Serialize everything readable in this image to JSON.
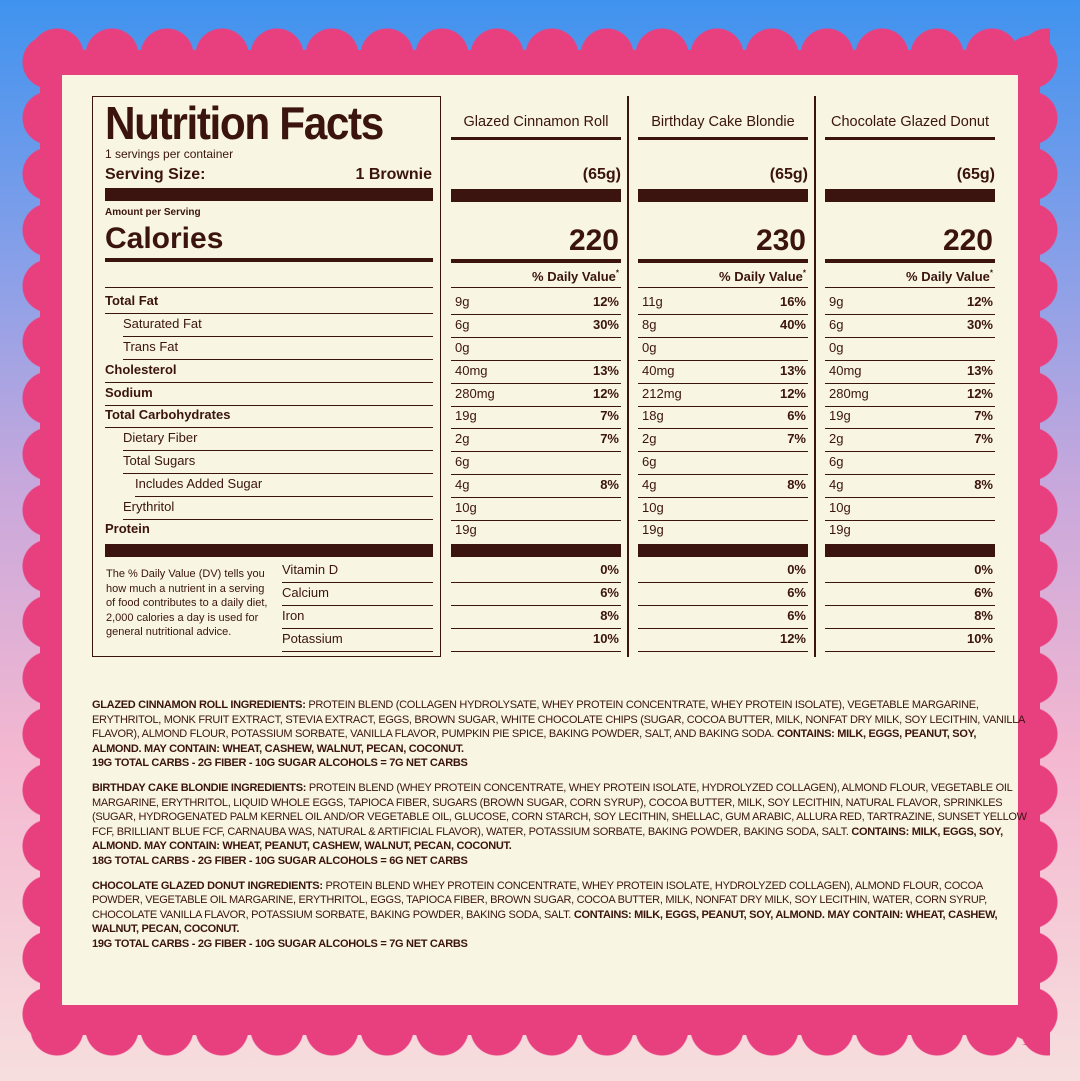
{
  "label": {
    "title": "Nutrition Facts",
    "servings": "1 servings per container",
    "serving_size_label": "Serving Size:",
    "serving_size_value": "1 Brownie",
    "amount_per_serving": "Amount per Serving",
    "calories_label": "Calories",
    "daily_value_header": "% Daily Value",
    "footnote_mark": "*",
    "nutrients": [
      "Total Fat",
      "Saturated Fat",
      "Trans Fat",
      "Cholesterol",
      "Sodium",
      "Total Carbohydrates",
      "Dietary Fiber",
      "Total Sugars",
      "Includes Added Sugar",
      "Erythritol",
      "Protein"
    ],
    "vitamins": [
      "Vitamin D",
      "Calcium",
      "Iron",
      "Potassium"
    ],
    "dv_note": "The % Daily Value (DV) tells you how much a nutrient in a serving of food contributes to a daily diet, 2,000 calories a day is used for general nutritional advice."
  },
  "products": [
    {
      "name": "Glazed Cinnamon Roll",
      "weight": "(65g)",
      "calories": "220",
      "amounts": [
        "9g",
        "6g",
        "0g",
        "40mg",
        "280mg",
        "19g",
        "2g",
        "6g",
        "4g",
        "10g",
        "19g"
      ],
      "dv": [
        "12%",
        "30%",
        "",
        "13%",
        "12%",
        "7%",
        "7%",
        "",
        "8%",
        "",
        ""
      ],
      "vitamins": [
        "0%",
        "6%",
        "8%",
        "10%"
      ]
    },
    {
      "name": "Birthday Cake Blondie",
      "weight": "(65g)",
      "calories": "230",
      "amounts": [
        "11g",
        "8g",
        "0g",
        "40mg",
        "212mg",
        "18g",
        "2g",
        "6g",
        "4g",
        "10g",
        "19g"
      ],
      "dv": [
        "16%",
        "40%",
        "",
        "13%",
        "12%",
        "6%",
        "7%",
        "",
        "8%",
        "",
        ""
      ],
      "vitamins": [
        "0%",
        "6%",
        "6%",
        "12%"
      ]
    },
    {
      "name": "Chocolate Glazed Donut",
      "weight": "(65g)",
      "calories": "220",
      "amounts": [
        "9g",
        "6g",
        "0g",
        "40mg",
        "280mg",
        "19g",
        "2g",
        "6g",
        "4g",
        "10g",
        "19g"
      ],
      "dv": [
        "12%",
        "30%",
        "",
        "13%",
        "12%",
        "7%",
        "7%",
        "",
        "8%",
        "",
        ""
      ],
      "vitamins": [
        "0%",
        "6%",
        "8%",
        "10%"
      ]
    }
  ],
  "ingredients": [
    {
      "heading": "Glazed Cinnamon Roll Ingredients:",
      "text": " Protein Blend (Collagen Hydrolysate, Whey Protein Concentrate, Whey Protein Isolate), Vegetable Margarine, Erythritol, Monk Fruit Extract, Stevia Extract, Eggs, Brown Sugar, White Chocolate Chips (Sugar, Cocoa Butter, Milk, Nonfat Dry Milk, Soy Lecithin, Vanilla Flavor), Almond Flour, Potassium Sorbate, Vanilla Flavor, Pumpkin Pie Spice, Baking Powder, Salt, and Baking Soda. ",
      "allergens": "Contains: Milk, Eggs, Peanut, Soy, Almond. May Contain: Wheat, Cashew, Walnut, Pecan, Coconut.",
      "carbs": "19G Total Carbs - 2G Fiber - 10G Sugar Alcohols = 7G Net Carbs"
    },
    {
      "heading": "Birthday Cake Blondie Ingredients:",
      "text": " Protein Blend (Whey Protein Concentrate, Whey Protein Isolate, Hydrolyzed Collagen), Almond Flour, Vegetable Oil Margarine, Erythritol, Liquid Whole Eggs, Tapioca Fiber, Sugars (Brown Sugar, Corn Syrup), Cocoa Butter, Milk, Soy Lecithin, Natural Flavor, Sprinkles (Sugar, Hydrogenated Palm Kernel Oil and/or Vegetable Oil, Glucose, Corn Starch, Soy Lecithin, Shellac, Gum Arabic, Allura Red, Tartrazine, Sunset Yellow FCF, Brilliant Blue FCF, Carnauba Was, Natural & Artificial Flavor), Water, Potassium Sorbate, Baking Powder, Baking Soda, Salt. ",
      "allergens": "Contains: Milk, Eggs, Soy, Almond. May Contain: Wheat, Peanut, Cashew, Walnut, Pecan, Coconut.",
      "carbs": "18G Total Carbs - 2G Fiber - 10G Sugar Alcohols = 6G Net Carbs"
    },
    {
      "heading": "Chocolate Glazed Donut Ingredients:",
      "text": " Protein Blend Whey Protein Concentrate, Whey Protein Isolate, Hydrolyzed Collagen), Almond Flour, Cocoa Powder, Vegetable Oil Margarine, Erythritol, Eggs, Tapioca Fiber, Brown Sugar, Cocoa Butter, Milk, Nonfat Dry Milk, Soy Lecithin, Water, Corn Syrup, Chocolate Vanilla Flavor, Potassium Sorbate, Baking Powder, Baking Soda, Salt. ",
      "allergens": "Contains: Milk, Eggs, Peanut, Soy, Almond. May Contain: Wheat, Cashew, Walnut, Pecan, Coconut.",
      "carbs": "19G Total Carbs - 2G Fiber - 10G Sugar Alcohols = 7G Net Carbs"
    }
  ],
  "colors": {
    "frame": "#e8407f",
    "panel": "#f8f5e2",
    "text": "#3b1410"
  }
}
